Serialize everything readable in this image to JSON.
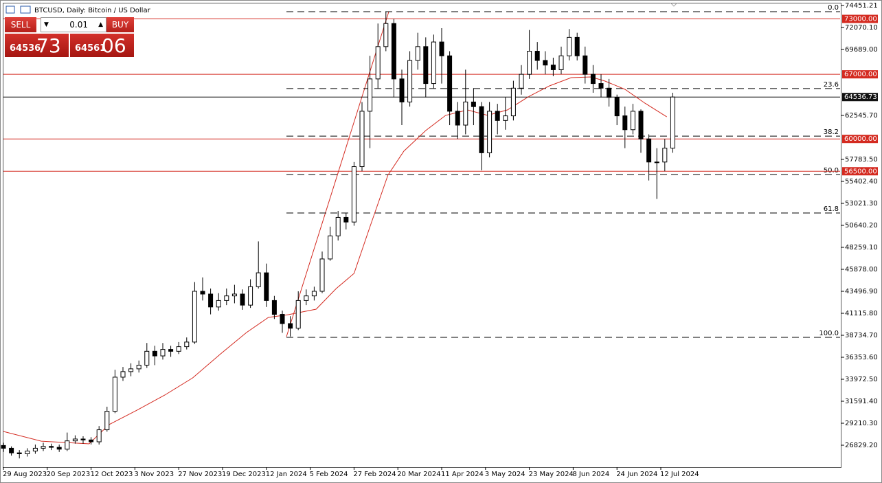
{
  "header": {
    "title": "BTCUSD, Daily:  Bitcoin / US Dollar"
  },
  "trade_panel": {
    "sell": "SELL",
    "buy": "BUY",
    "lot": "0.01",
    "bid_main": "64536",
    "bid_big": "73",
    "ask_main": "64561",
    "ask_big": "06"
  },
  "chart_data": {
    "type": "candlestick",
    "x": [
      0,
      4,
      8,
      12,
      16,
      20,
      24,
      28,
      32,
      36,
      40,
      44,
      48,
      52,
      56,
      60,
      64,
      68,
      72,
      76,
      80,
      84,
      88,
      92,
      96,
      100,
      104,
      108,
      112,
      116,
      120,
      124,
      128,
      132,
      136,
      140,
      144,
      148,
      152,
      156,
      160,
      164,
      168,
      172,
      176,
      180,
      184,
      188,
      192,
      196,
      200,
      204,
      208,
      212,
      216,
      220,
      224,
      228,
      232,
      236,
      240,
      244,
      248,
      252,
      256,
      260,
      264,
      268,
      272,
      276,
      280,
      284,
      288,
      292,
      296,
      300,
      304,
      308,
      312,
      316,
      320,
      324,
      328,
      332,
      336
    ],
    "open": [
      26800,
      26500,
      26000,
      25900,
      26200,
      26500,
      26700,
      26600,
      26400,
      27300,
      27500,
      27400,
      27200,
      28500,
      30500,
      34200,
      34800,
      35100,
      35500,
      37000,
      36500,
      37200,
      37000,
      37500,
      38000,
      43500,
      43200,
      41800,
      42500,
      43000,
      43200,
      42000,
      44000,
      45500,
      42500,
      41000,
      40000,
      39500,
      42500,
      43000,
      43500,
      47000,
      49500,
      51500,
      51000,
      57000,
      63000,
      66500,
      70000,
      72500,
      66500,
      64000,
      68500,
      70000,
      66000,
      70500,
      69000,
      63000,
      61500,
      64000,
      63500,
      58500,
      63000,
      62000,
      62500,
      65500,
      67000,
      69500,
      68500,
      68000,
      67500,
      69000,
      71000,
      69000,
      67000,
      66000,
      65500,
      64500,
      62500,
      61000,
      63000,
      60000,
      57500,
      57500,
      59000
    ],
    "high": [
      27100,
      26700,
      26300,
      26500,
      26900,
      27100,
      27000,
      26900,
      28200,
      27900,
      27800,
      27700,
      28900,
      31000,
      35000,
      35300,
      35700,
      36000,
      37900,
      37600,
      37900,
      37600,
      38000,
      38500,
      44500,
      45000,
      43800,
      43300,
      43800,
      44200,
      43700,
      44800,
      48900,
      46500,
      43000,
      41400,
      40800,
      43500,
      43700,
      44000,
      47800,
      50500,
      52200,
      52000,
      57500,
      64000,
      69000,
      72500,
      73800,
      73000,
      67500,
      69500,
      71500,
      71000,
      71300,
      72000,
      69500,
      64000,
      67500,
      65500,
      64000,
      64000,
      63800,
      64500,
      66300,
      68000,
      71800,
      70500,
      69500,
      68800,
      70000,
      71900,
      71500,
      70000,
      68000,
      67000,
      66500,
      64800,
      63500,
      63800,
      63200,
      60500,
      59000,
      60000,
      65000
    ],
    "low": [
      26100,
      25700,
      25400,
      25600,
      25900,
      26200,
      26300,
      26100,
      26200,
      27000,
      27000,
      26900,
      26900,
      28300,
      30300,
      33800,
      34300,
      34700,
      35200,
      35500,
      36100,
      36400,
      36700,
      37200,
      37800,
      42500,
      41000,
      41400,
      42000,
      42200,
      41500,
      41700,
      43800,
      41800,
      40500,
      39000,
      38600,
      39300,
      42000,
      42500,
      43300,
      46800,
      49000,
      50200,
      50600,
      56500,
      59000,
      65500,
      69500,
      64500,
      61500,
      63500,
      67500,
      64500,
      65500,
      66000,
      61500,
      60000,
      60500,
      61500,
      56600,
      58000,
      60500,
      61000,
      62000,
      64800,
      66500,
      67500,
      67000,
      66800,
      67000,
      68500,
      68500,
      66000,
      65000,
      64500,
      63500,
      61500,
      59000,
      60500,
      58500,
      55500,
      53500,
      56500,
      58500
    ],
    "close": [
      26500,
      26000,
      25900,
      26200,
      26500,
      26700,
      26600,
      26400,
      27300,
      27500,
      27400,
      27200,
      28500,
      30500,
      34200,
      34800,
      35100,
      35500,
      37000,
      36500,
      37200,
      37000,
      37500,
      38000,
      43500,
      43200,
      41800,
      42500,
      43000,
      43200,
      42000,
      44000,
      45500,
      42500,
      41000,
      40000,
      39500,
      42500,
      43000,
      43500,
      47000,
      49500,
      51500,
      51000,
      57000,
      63000,
      66500,
      70000,
      72500,
      66500,
      64000,
      68500,
      70000,
      66000,
      70500,
      69000,
      63000,
      61500,
      64000,
      63500,
      58500,
      63000,
      62000,
      62500,
      65500,
      67000,
      69500,
      68500,
      68000,
      67500,
      69000,
      71000,
      69000,
      67000,
      66000,
      65500,
      64500,
      62500,
      61000,
      63000,
      60000,
      57500,
      57500,
      59000,
      64536.73
    ],
    "ma": {
      "color": "#d42a20",
      "x": [
        0,
        19,
        43,
        53,
        67,
        81,
        95,
        109,
        122,
        133,
        143,
        157,
        167,
        176,
        184,
        193,
        201,
        212,
        222,
        233,
        243,
        253,
        264,
        274,
        285,
        295,
        302,
        312,
        322,
        333
      ],
      "values": [
        28320,
        27270,
        26980,
        29060,
        30620,
        32260,
        34120,
        36720,
        39030,
        40670,
        40970,
        41560,
        43790,
        45430,
        50490,
        56070,
        58680,
        60910,
        62550,
        63140,
        62550,
        63140,
        64630,
        65740,
        66640,
        66710,
        66270,
        65370,
        63880,
        62390
      ]
    },
    "xlim": [
      0,
      420
    ],
    "ylim": [
      24448,
      74749
    ],
    "xticks": [
      {
        "value": 0,
        "label": "29 Aug 2023"
      },
      {
        "value": 22,
        "label": "20 Sep 2023"
      },
      {
        "value": 44,
        "label": "12 Oct 2023"
      },
      {
        "value": 66,
        "label": "3 Nov 2023"
      },
      {
        "value": 88,
        "label": "27 Nov 2023"
      },
      {
        "value": 110,
        "label": "19 Dec 2023"
      },
      {
        "value": 132,
        "label": "12 Jan 2024"
      },
      {
        "value": 154,
        "label": "5 Feb 2024"
      },
      {
        "value": 176,
        "label": "27 Feb 2024"
      },
      {
        "value": 198,
        "label": "20 Mar 2024"
      },
      {
        "value": 220,
        "label": "11 Apr 2024"
      },
      {
        "value": 242,
        "label": "3 May 2024"
      },
      {
        "value": 264,
        "label": "23 May 2024"
      },
      {
        "value": 286,
        "label": "8 Jun 2024"
      },
      {
        "value": 308,
        "label": "24 Jun 2024"
      },
      {
        "value": 330,
        "label": "12 Jul 2024"
      }
    ],
    "yticks": [
      {
        "value": 74451.21,
        "label": "74451.21"
      },
      {
        "value": 72070.1,
        "label": "72070.10"
      },
      {
        "value": 69689,
        "label": "69689.00"
      },
      {
        "value": 62545.7,
        "label": "62545.70"
      },
      {
        "value": 57783.5,
        "label": "57783.50"
      },
      {
        "value": 55402.4,
        "label": "55402.40"
      },
      {
        "value": 53021.3,
        "label": "53021.30"
      },
      {
        "value": 50640.2,
        "label": "50640.20"
      },
      {
        "value": 48259.1,
        "label": "48259.10"
      },
      {
        "value": 45878,
        "label": "45878.00"
      },
      {
        "value": 43496.9,
        "label": "43496.90"
      },
      {
        "value": 41115.8,
        "label": "41115.80"
      },
      {
        "value": 38734.7,
        "label": "38734.70"
      },
      {
        "value": 36353.6,
        "label": "36353.60"
      },
      {
        "value": 33972.5,
        "label": "33972.50"
      },
      {
        "value": 31591.4,
        "label": "31591.40"
      },
      {
        "value": 29210.3,
        "label": "29210.30"
      },
      {
        "value": 26829.2,
        "label": "26829.20"
      }
    ],
    "levels": [
      {
        "value": 73000,
        "label": "73000.00",
        "color": "#d42a20"
      },
      {
        "value": 67000,
        "label": "67000.00",
        "color": "#d42a20"
      },
      {
        "value": 60000,
        "label": "60000.00",
        "color": "#d42a20"
      },
      {
        "value": 56500,
        "label": "56500.00",
        "color": "#d42a20"
      }
    ],
    "current_price": {
      "value": 64536.73,
      "label": "64536.73"
    },
    "fib_levels": [
      {
        "label": "0.0",
        "price": 73780
      },
      {
        "label": "23.6",
        "price": 65456
      },
      {
        "label": "38.2",
        "price": 60307
      },
      {
        "label": "50.0",
        "price": 56145
      },
      {
        "label": "61.8",
        "price": 51983
      },
      {
        "label": "100.0",
        "price": 38510
      }
    ]
  }
}
